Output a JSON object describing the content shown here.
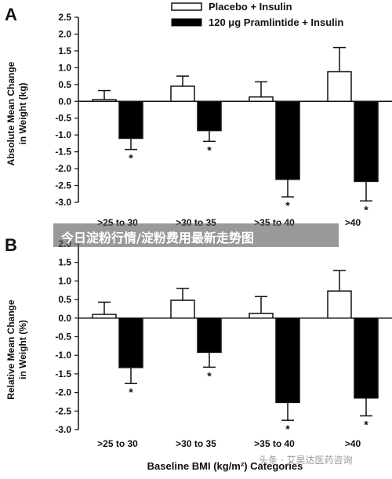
{
  "legend": {
    "placebo": "Placebo + Insulin",
    "pram": "120 μg Pramlintide + Insulin"
  },
  "banner_text": "今日淀粉行情/淀粉费用最新走势图",
  "watermark_text": "头条 · 艾昊达医药咨询",
  "colors": {
    "placebo": "#ffffff",
    "pram": "#000000",
    "axis": "#111111"
  },
  "chart_data": [
    {
      "type": "bar",
      "panel": "A",
      "categories": [
        ">25 to 30",
        ">30 to 35",
        ">35 to 40",
        ">40"
      ],
      "ylabel_line1": "Absolute Mean Change",
      "ylabel_line2": "in Weight (kg)",
      "xlabel": "",
      "ylim": [
        -3.0,
        2.5
      ],
      "yticks": [
        "2.5",
        "2.0",
        "1.5",
        "1.0",
        "0.5",
        "0.0",
        "-0.5",
        "-1.0",
        "-1.5",
        "-2.0",
        "-2.5",
        "-3.0"
      ],
      "series": [
        {
          "name": "Placebo + Insulin",
          "values": [
            0.05,
            0.45,
            0.13,
            0.88
          ],
          "err": [
            0.27,
            0.3,
            0.45,
            0.72
          ]
        },
        {
          "name": "120 μg Pramlintide + Insulin",
          "values": [
            -1.1,
            -0.87,
            -2.32,
            -2.38
          ],
          "err": [
            0.33,
            0.32,
            0.52,
            0.58
          ]
        }
      ],
      "significance": [
        "*",
        "*",
        "*",
        "*"
      ]
    },
    {
      "type": "bar",
      "panel": "B",
      "categories": [
        ">25 to 30",
        ">30 to 35",
        ">35 to 40",
        ">40"
      ],
      "ylabel_line1": "Relative Mean Change",
      "ylabel_line2": "in Weight (%)",
      "xlabel": "Baseline BMI (kg/m²) Categories",
      "ylim": [
        -3.0,
        2.0
      ],
      "yticks": [
        "2.0",
        "1.5",
        "1.0",
        "0.5",
        "0.0",
        "-0.5",
        "-1.0",
        "-1.5",
        "-2.0",
        "-2.5",
        "-3.0"
      ],
      "series": [
        {
          "name": "Placebo + Insulin",
          "values": [
            0.1,
            0.48,
            0.13,
            0.73
          ],
          "err": [
            0.33,
            0.32,
            0.45,
            0.55
          ]
        },
        {
          "name": "120 μg Pramlintide + Insulin",
          "values": [
            -1.33,
            -0.92,
            -2.27,
            -2.15
          ],
          "err": [
            0.43,
            0.4,
            0.48,
            0.48
          ]
        }
      ],
      "significance": [
        "*",
        "*",
        "*",
        "*"
      ]
    }
  ]
}
